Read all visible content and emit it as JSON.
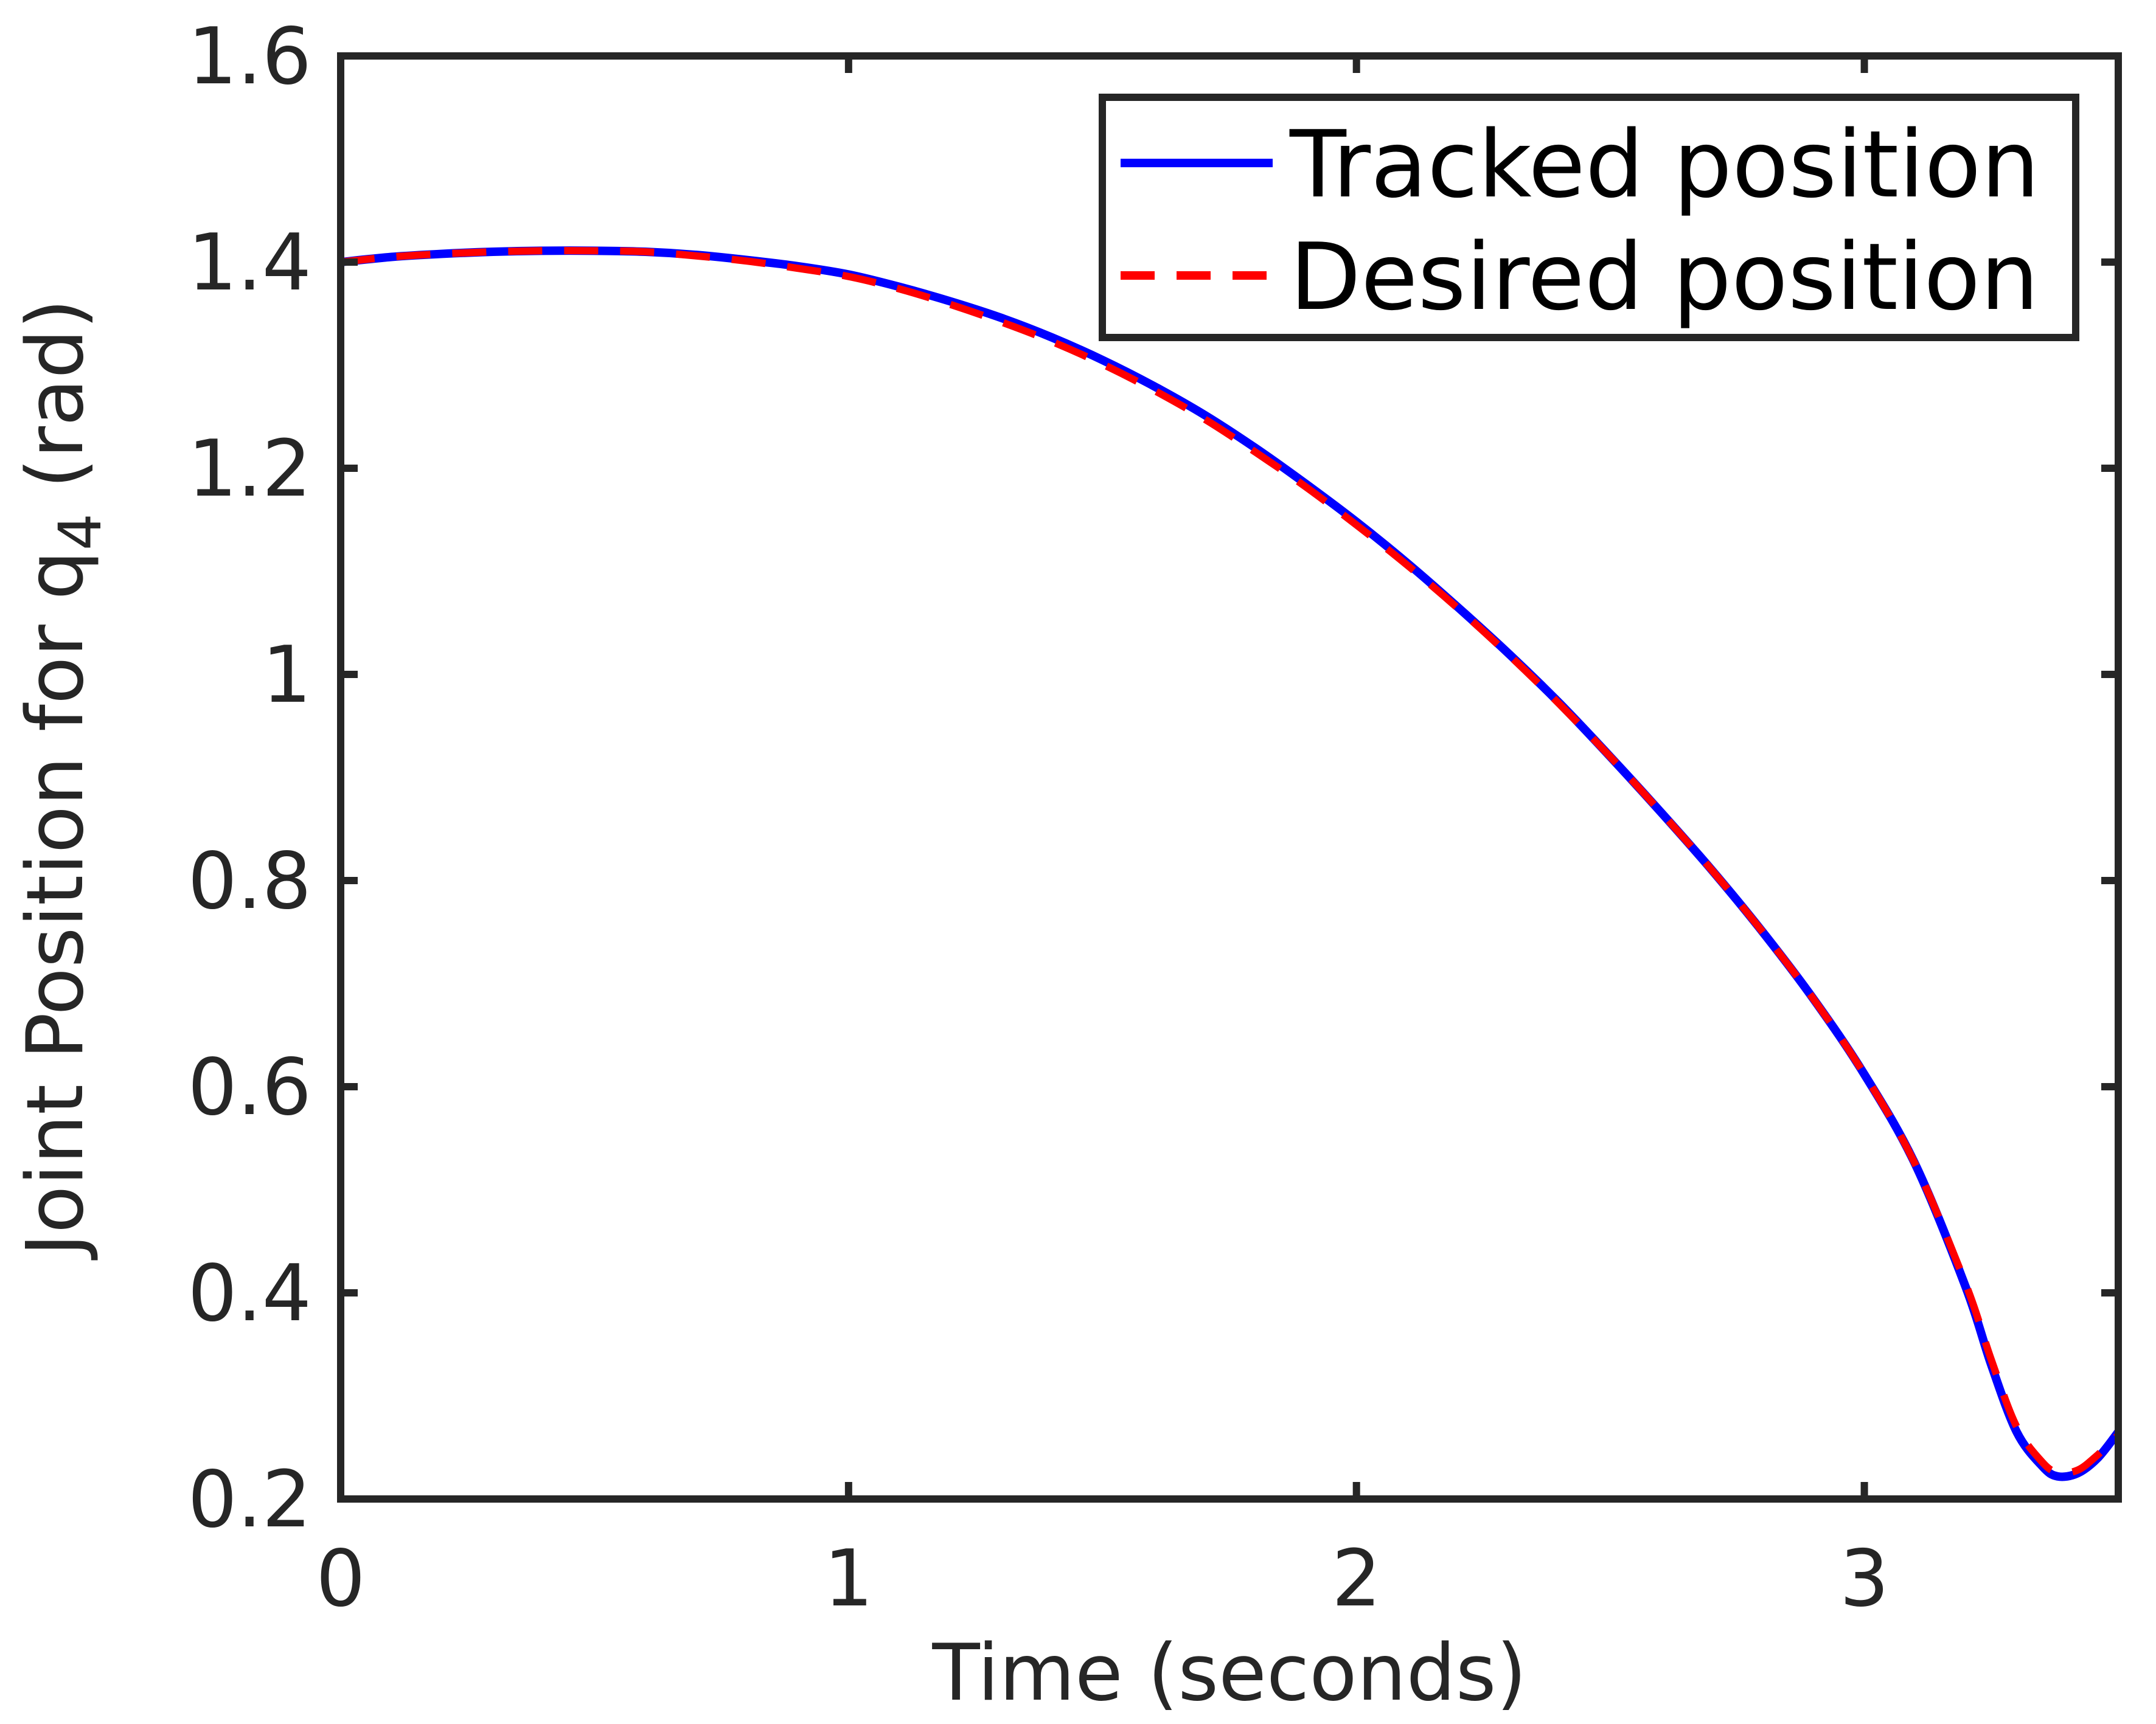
{
  "chart_data": {
    "type": "line",
    "xlabel": "Time (seconds)",
    "ylabel": {
      "main": "Joint Position for q",
      "subscript": "4",
      "unit": " (rad)"
    },
    "xlim": [
      0,
      3.5
    ],
    "ylim": [
      0.2,
      1.6
    ],
    "xticks": [
      0,
      1,
      2,
      3
    ],
    "xtick_labels": [
      "0",
      "1",
      "2",
      "3"
    ],
    "yticks": [
      0.2,
      0.4,
      0.6,
      0.8,
      1.0,
      1.2,
      1.4,
      1.6
    ],
    "ytick_labels": [
      "0.2",
      "0.4",
      "0.6",
      "0.8",
      "1",
      "1.2",
      "1.4",
      "1.6"
    ],
    "grid": false,
    "legend_position": "top-right",
    "series": [
      {
        "name": "Tracked position",
        "color": "#0000ff",
        "style": "solid",
        "x": [
          0,
          0.1,
          0.2,
          0.3,
          0.4,
          0.5,
          0.6,
          0.7,
          0.8,
          0.9,
          1.0,
          1.1,
          1.2,
          1.3,
          1.4,
          1.5,
          1.6,
          1.7,
          1.8,
          1.9,
          2.0,
          2.1,
          2.2,
          2.3,
          2.4,
          2.5,
          2.6,
          2.7,
          2.8,
          2.9,
          3.0,
          3.1,
          3.2,
          3.25,
          3.3,
          3.35,
          3.38,
          3.42,
          3.46,
          3.5
        ],
        "y": [
          1.4,
          1.405,
          1.408,
          1.41,
          1.411,
          1.411,
          1.41,
          1.407,
          1.402,
          1.396,
          1.388,
          1.376,
          1.362,
          1.346,
          1.327,
          1.305,
          1.28,
          1.252,
          1.22,
          1.185,
          1.148,
          1.108,
          1.065,
          1.02,
          0.972,
          0.92,
          0.866,
          0.81,
          0.75,
          0.685,
          0.612,
          0.525,
          0.405,
          0.33,
          0.265,
          0.232,
          0.222,
          0.225,
          0.24,
          0.265
        ]
      },
      {
        "name": "Desired position",
        "color": "#ff0000",
        "style": "dashed",
        "x": [
          0,
          0.1,
          0.2,
          0.3,
          0.4,
          0.5,
          0.6,
          0.7,
          0.8,
          0.9,
          1.0,
          1.1,
          1.2,
          1.3,
          1.4,
          1.5,
          1.6,
          1.7,
          1.8,
          1.9,
          2.0,
          2.1,
          2.2,
          2.3,
          2.4,
          2.5,
          2.6,
          2.7,
          2.8,
          2.9,
          3.0,
          3.1,
          3.2,
          3.25,
          3.3,
          3.35,
          3.38,
          3.42,
          3.46,
          3.5
        ],
        "y": [
          1.4,
          1.405,
          1.408,
          1.41,
          1.411,
          1.411,
          1.41,
          1.406,
          1.401,
          1.394,
          1.386,
          1.374,
          1.359,
          1.342,
          1.323,
          1.301,
          1.276,
          1.248,
          1.216,
          1.182,
          1.145,
          1.106,
          1.064,
          1.019,
          0.971,
          0.92,
          0.866,
          0.81,
          0.75,
          0.685,
          0.612,
          0.525,
          0.408,
          0.335,
          0.27,
          0.236,
          0.226,
          0.228,
          0.243,
          0.262
        ]
      }
    ]
  }
}
